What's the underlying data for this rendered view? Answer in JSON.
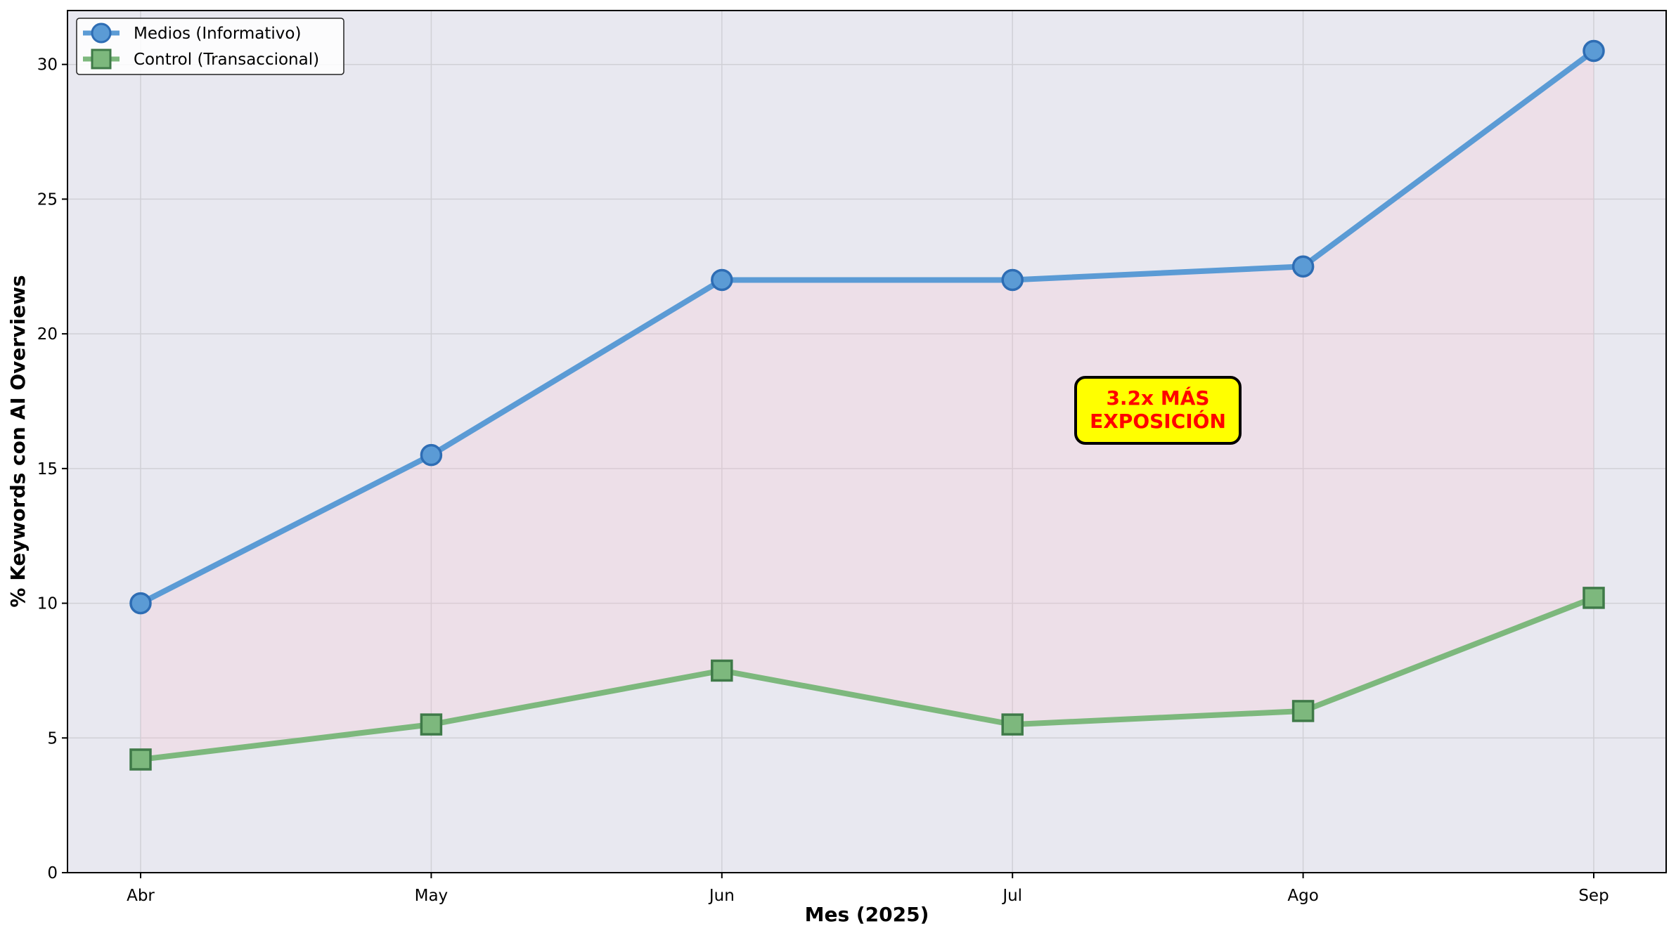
{
  "chart_data": {
    "type": "line",
    "title": "",
    "xlabel": "Mes (2025)",
    "ylabel": "% Keywords con AI Overviews",
    "categories": [
      "Abr",
      "May",
      "Jun",
      "Jul",
      "Ago",
      "Sep"
    ],
    "series": [
      {
        "name": "Medios (Informativo)",
        "values": [
          10.0,
          15.5,
          22.0,
          22.0,
          22.5,
          30.5
        ],
        "color": "#5b9bd5",
        "marker": "circle",
        "marker_face": "#5b9bd5",
        "marker_edge": "#2e6db4"
      },
      {
        "name": "Control (Transaccional)",
        "values": [
          4.2,
          5.5,
          7.5,
          5.5,
          6.0,
          10.2
        ],
        "color": "#7db87d",
        "marker": "square",
        "marker_face": "#7db87d",
        "marker_edge": "#3f7a48"
      }
    ],
    "yticks": [
      "0",
      "5",
      "10",
      "15",
      "20",
      "25",
      "30"
    ],
    "ylim": [
      0,
      32
    ],
    "grid": true,
    "legend": "top-left",
    "fill_between": {
      "series": [
        "Medios (Informativo)",
        "Control (Transaccional)"
      ],
      "color": "#ffc0cb"
    },
    "annotation": {
      "lines": [
        "3.2x MÁS",
        "EXPOSICIÓN"
      ],
      "position": {
        "category_index": 3.5,
        "y": 17.2
      },
      "background": "#ffff00",
      "text_color": "#ff0000"
    },
    "plot_background": "#e8e8f0"
  }
}
